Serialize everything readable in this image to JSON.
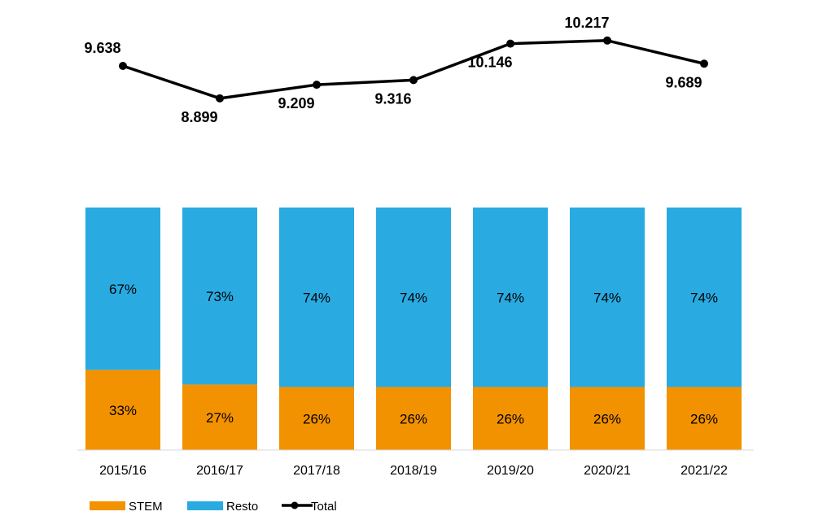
{
  "chart_data": {
    "type": "bar",
    "stacked": true,
    "percent_stacked": true,
    "categories": [
      "2015/16",
      "2016/17",
      "2017/18",
      "2018/19",
      "2019/20",
      "2020/21",
      "2021/22"
    ],
    "series": [
      {
        "name": "STEM",
        "type": "bar",
        "values": [
          33,
          27,
          26,
          26,
          26,
          26,
          26
        ],
        "labels": [
          "33%",
          "27%",
          "26%",
          "26%",
          "26%",
          "26%",
          "26%"
        ],
        "color": "#F39200"
      },
      {
        "name": "Resto",
        "type": "bar",
        "values": [
          67,
          73,
          74,
          74,
          74,
          74,
          74
        ],
        "labels": [
          "67%",
          "73%",
          "74%",
          "74%",
          "74%",
          "74%",
          "74%"
        ],
        "color": "#29ABE2"
      },
      {
        "name": "Total",
        "type": "line",
        "values": [
          9638,
          8899,
          9209,
          9316,
          10146,
          10217,
          9689
        ],
        "labels": [
          "9.638",
          "8.899",
          "9.209",
          "9.316",
          "10.146",
          "10.217",
          "9.689"
        ],
        "color": "#000000"
      }
    ],
    "grid": false,
    "legend": "bottom-left"
  }
}
